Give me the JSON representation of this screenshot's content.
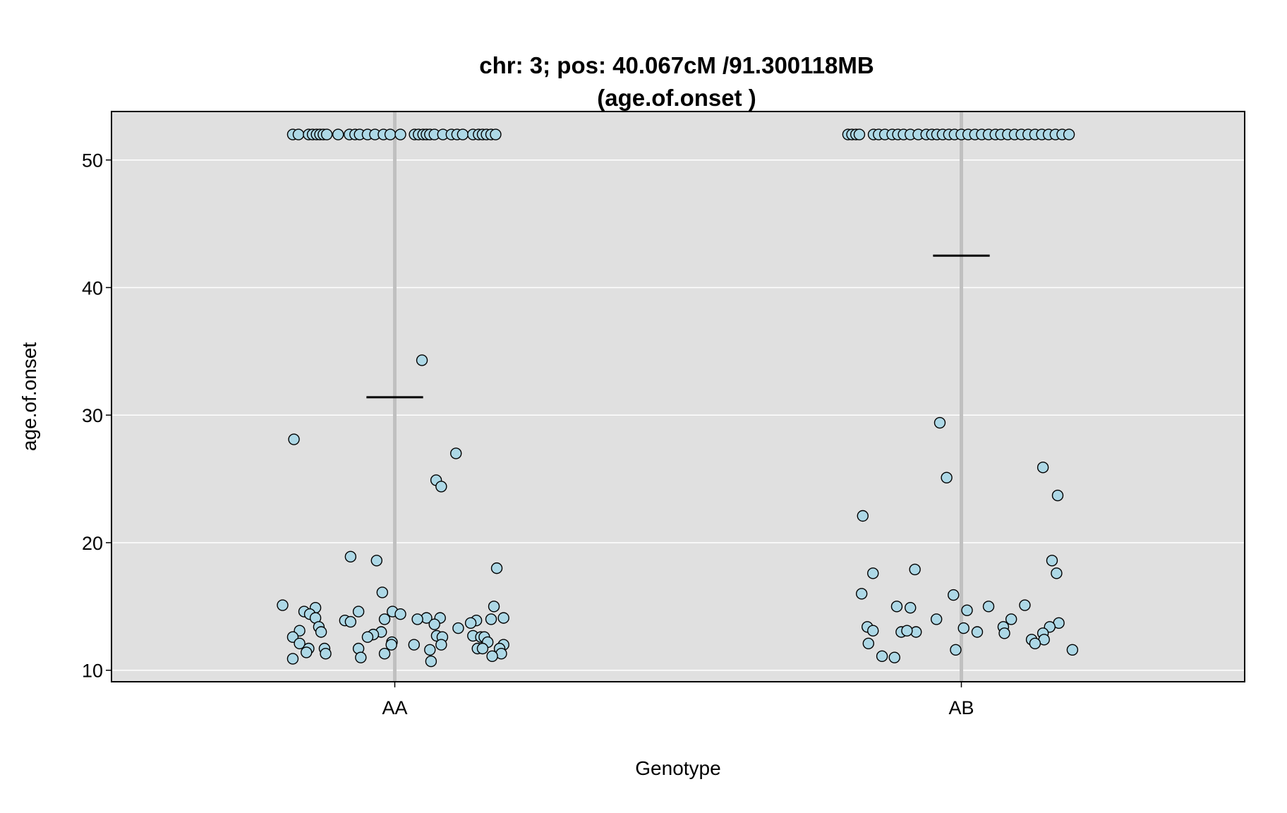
{
  "chart_data": {
    "type": "scatter",
    "title": "chr: 3; pos: 40.067cM /91.300118MB",
    "subtitle": "(age.of.onset )",
    "xlabel": "Genotype",
    "ylabel": "age.of.onset",
    "categories": [
      "AA",
      "AB"
    ],
    "ylim": [
      9.1,
      53.8
    ],
    "yticks": [
      10,
      20,
      30,
      40,
      50
    ],
    "grid": true,
    "legend": "none",
    "means": [
      31.4,
      42.5
    ],
    "colors": {
      "panel": "#e0e0e0",
      "gridline": "#ffffff",
      "group_line": "#c0c0c0",
      "point_fill": "#add8e6",
      "point_stroke": "#000000",
      "mean_line": "#000000"
    },
    "series": [
      {
        "points": [
          {
            "dx": -0.18,
            "y": 52
          },
          {
            "dx": -0.17,
            "y": 52
          },
          {
            "dx": -0.152,
            "y": 52
          },
          {
            "dx": -0.145,
            "y": 52
          },
          {
            "dx": -0.138,
            "y": 52
          },
          {
            "dx": -0.132,
            "y": 52
          },
          {
            "dx": -0.126,
            "y": 52
          },
          {
            "dx": -0.12,
            "y": 52
          },
          {
            "dx": -0.1,
            "y": 52
          },
          {
            "dx": -0.08,
            "y": 52
          },
          {
            "dx": -0.07,
            "y": 52
          },
          {
            "dx": -0.062,
            "y": 52
          },
          {
            "dx": -0.048,
            "y": 52
          },
          {
            "dx": -0.035,
            "y": 52
          },
          {
            "dx": -0.02,
            "y": 52
          },
          {
            "dx": -0.008,
            "y": 52
          },
          {
            "dx": 0.01,
            "y": 52
          },
          {
            "dx": 0.035,
            "y": 52
          },
          {
            "dx": 0.042,
            "y": 52
          },
          {
            "dx": 0.05,
            "y": 52
          },
          {
            "dx": 0.056,
            "y": 52
          },
          {
            "dx": 0.062,
            "y": 52
          },
          {
            "dx": 0.07,
            "y": 52
          },
          {
            "dx": 0.085,
            "y": 52
          },
          {
            "dx": 0.1,
            "y": 52
          },
          {
            "dx": 0.11,
            "y": 52
          },
          {
            "dx": 0.12,
            "y": 52
          },
          {
            "dx": 0.138,
            "y": 52
          },
          {
            "dx": 0.148,
            "y": 52
          },
          {
            "dx": 0.155,
            "y": 52
          },
          {
            "dx": 0.162,
            "y": 52
          },
          {
            "dx": 0.17,
            "y": 52
          },
          {
            "dx": 0.178,
            "y": 52
          },
          {
            "dx": 0.048,
            "y": 34.3
          },
          {
            "dx": -0.178,
            "y": 28.1
          },
          {
            "dx": 0.108,
            "y": 27.0
          },
          {
            "dx": 0.073,
            "y": 24.9
          },
          {
            "dx": 0.082,
            "y": 24.4
          },
          {
            "dx": -0.078,
            "y": 18.9
          },
          {
            "dx": -0.032,
            "y": 18.6
          },
          {
            "dx": 0.18,
            "y": 18.0
          },
          {
            "dx": -0.022,
            "y": 16.1
          },
          {
            "dx": -0.198,
            "y": 15.1
          },
          {
            "dx": -0.14,
            "y": 14.9
          },
          {
            "dx": 0.175,
            "y": 15.0
          },
          {
            "dx": -0.16,
            "y": 14.6
          },
          {
            "dx": -0.064,
            "y": 14.6
          },
          {
            "dx": -0.004,
            "y": 14.6
          },
          {
            "dx": -0.15,
            "y": 14.4
          },
          {
            "dx": 0.01,
            "y": 14.4
          },
          {
            "dx": -0.14,
            "y": 14.1
          },
          {
            "dx": 0.056,
            "y": 14.1
          },
          {
            "dx": 0.08,
            "y": 14.1
          },
          {
            "dx": 0.192,
            "y": 14.1
          },
          {
            "dx": -0.088,
            "y": 13.9
          },
          {
            "dx": -0.018,
            "y": 14.0
          },
          {
            "dx": 0.04,
            "y": 14.0
          },
          {
            "dx": 0.144,
            "y": 13.9
          },
          {
            "dx": 0.17,
            "y": 14.0
          },
          {
            "dx": -0.078,
            "y": 13.8
          },
          {
            "dx": 0.134,
            "y": 13.7
          },
          {
            "dx": 0.07,
            "y": 13.6
          },
          {
            "dx": -0.134,
            "y": 13.4
          },
          {
            "dx": 0.112,
            "y": 13.3
          },
          {
            "dx": -0.168,
            "y": 13.1
          },
          {
            "dx": -0.13,
            "y": 13.0
          },
          {
            "dx": -0.024,
            "y": 13.0
          },
          {
            "dx": -0.038,
            "y": 12.8
          },
          {
            "dx": 0.074,
            "y": 12.7
          },
          {
            "dx": -0.18,
            "y": 12.6
          },
          {
            "dx": -0.048,
            "y": 12.6
          },
          {
            "dx": 0.084,
            "y": 12.6
          },
          {
            "dx": 0.138,
            "y": 12.7
          },
          {
            "dx": 0.152,
            "y": 12.6
          },
          {
            "dx": 0.158,
            "y": 12.6
          },
          {
            "dx": -0.005,
            "y": 12.2
          },
          {
            "dx": 0.164,
            "y": 12.2
          },
          {
            "dx": -0.168,
            "y": 12.1
          },
          {
            "dx": -0.006,
            "y": 12.0
          },
          {
            "dx": 0.034,
            "y": 12.0
          },
          {
            "dx": 0.082,
            "y": 12.0
          },
          {
            "dx": 0.192,
            "y": 12.0
          },
          {
            "dx": -0.152,
            "y": 11.7
          },
          {
            "dx": -0.124,
            "y": 11.7
          },
          {
            "dx": -0.064,
            "y": 11.7
          },
          {
            "dx": 0.062,
            "y": 11.6
          },
          {
            "dx": 0.146,
            "y": 11.7
          },
          {
            "dx": 0.155,
            "y": 11.7
          },
          {
            "dx": 0.185,
            "y": 11.7
          },
          {
            "dx": -0.156,
            "y": 11.4
          },
          {
            "dx": -0.122,
            "y": 11.3
          },
          {
            "dx": -0.018,
            "y": 11.3
          },
          {
            "dx": 0.188,
            "y": 11.3
          },
          {
            "dx": 0.172,
            "y": 11.1
          },
          {
            "dx": -0.06,
            "y": 11.0
          },
          {
            "dx": -0.18,
            "y": 10.9
          },
          {
            "dx": 0.064,
            "y": 10.7
          }
        ]
      },
      {
        "points": [
          {
            "dx": -0.2,
            "y": 52
          },
          {
            "dx": -0.193,
            "y": 52
          },
          {
            "dx": -0.186,
            "y": 52
          },
          {
            "dx": -0.18,
            "y": 52
          },
          {
            "dx": -0.155,
            "y": 52
          },
          {
            "dx": -0.146,
            "y": 52
          },
          {
            "dx": -0.135,
            "y": 52
          },
          {
            "dx": -0.122,
            "y": 52
          },
          {
            "dx": -0.112,
            "y": 52
          },
          {
            "dx": -0.102,
            "y": 52
          },
          {
            "dx": -0.09,
            "y": 52
          },
          {
            "dx": -0.076,
            "y": 52
          },
          {
            "dx": -0.062,
            "y": 52
          },
          {
            "dx": -0.052,
            "y": 52
          },
          {
            "dx": -0.043,
            "y": 52
          },
          {
            "dx": -0.033,
            "y": 52
          },
          {
            "dx": -0.022,
            "y": 52
          },
          {
            "dx": -0.012,
            "y": 52
          },
          {
            "dx": 0.0,
            "y": 52
          },
          {
            "dx": 0.012,
            "y": 52
          },
          {
            "dx": 0.024,
            "y": 52
          },
          {
            "dx": 0.036,
            "y": 52
          },
          {
            "dx": 0.048,
            "y": 52
          },
          {
            "dx": 0.06,
            "y": 52
          },
          {
            "dx": 0.07,
            "y": 52
          },
          {
            "dx": 0.082,
            "y": 52
          },
          {
            "dx": 0.094,
            "y": 52
          },
          {
            "dx": 0.106,
            "y": 52
          },
          {
            "dx": 0.118,
            "y": 52
          },
          {
            "dx": 0.13,
            "y": 52
          },
          {
            "dx": 0.142,
            "y": 52
          },
          {
            "dx": 0.154,
            "y": 52
          },
          {
            "dx": 0.166,
            "y": 52
          },
          {
            "dx": 0.178,
            "y": 52
          },
          {
            "dx": 0.19,
            "y": 52
          },
          {
            "dx": -0.038,
            "y": 29.4
          },
          {
            "dx": -0.026,
            "y": 25.1
          },
          {
            "dx": 0.144,
            "y": 25.9
          },
          {
            "dx": 0.17,
            "y": 23.7
          },
          {
            "dx": -0.174,
            "y": 22.1
          },
          {
            "dx": 0.16,
            "y": 18.6
          },
          {
            "dx": -0.082,
            "y": 17.9
          },
          {
            "dx": -0.156,
            "y": 17.6
          },
          {
            "dx": 0.168,
            "y": 17.6
          },
          {
            "dx": -0.176,
            "y": 16.0
          },
          {
            "dx": -0.014,
            "y": 15.9
          },
          {
            "dx": -0.114,
            "y": 15.0
          },
          {
            "dx": 0.048,
            "y": 15.0
          },
          {
            "dx": 0.112,
            "y": 15.1
          },
          {
            "dx": -0.09,
            "y": 14.9
          },
          {
            "dx": 0.01,
            "y": 14.7
          },
          {
            "dx": -0.044,
            "y": 14.0
          },
          {
            "dx": 0.088,
            "y": 14.0
          },
          {
            "dx": 0.172,
            "y": 13.7
          },
          {
            "dx": -0.166,
            "y": 13.4
          },
          {
            "dx": 0.004,
            "y": 13.3
          },
          {
            "dx": 0.074,
            "y": 13.4
          },
          {
            "dx": 0.156,
            "y": 13.4
          },
          {
            "dx": -0.106,
            "y": 13.0
          },
          {
            "dx": -0.08,
            "y": 13.0
          },
          {
            "dx": 0.028,
            "y": 13.0
          },
          {
            "dx": -0.156,
            "y": 13.1
          },
          {
            "dx": -0.096,
            "y": 13.1
          },
          {
            "dx": 0.076,
            "y": 12.9
          },
          {
            "dx": 0.144,
            "y": 12.9
          },
          {
            "dx": 0.124,
            "y": 12.4
          },
          {
            "dx": 0.146,
            "y": 12.4
          },
          {
            "dx": -0.164,
            "y": 12.1
          },
          {
            "dx": 0.13,
            "y": 12.1
          },
          {
            "dx": -0.01,
            "y": 11.6
          },
          {
            "dx": 0.196,
            "y": 11.6
          },
          {
            "dx": -0.14,
            "y": 11.1
          },
          {
            "dx": -0.118,
            "y": 11.0
          }
        ]
      }
    ]
  }
}
